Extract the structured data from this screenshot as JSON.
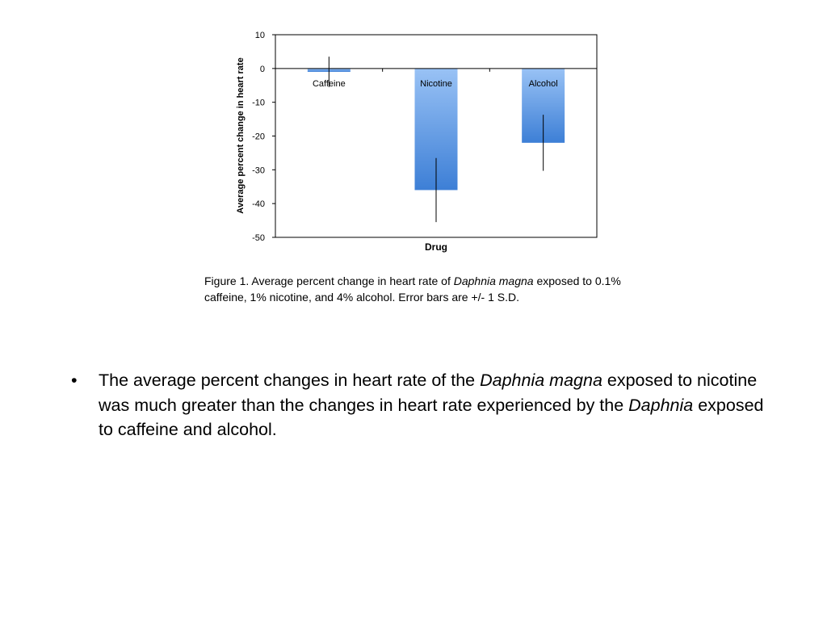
{
  "chart_data": {
    "type": "bar",
    "title": "",
    "xlabel": "Drug",
    "ylabel": "Average percent change in heart rate",
    "ylim": [
      -50,
      10
    ],
    "yticks": [
      10,
      0,
      -10,
      -20,
      -30,
      -40,
      -50
    ],
    "categories": [
      "Caffeine",
      "Nicotine",
      "Alcohol"
    ],
    "values": [
      -1,
      -36,
      -22
    ],
    "error": [
      4.5,
      9.5,
      8.3
    ],
    "bar_gradient": {
      "top": "#99c2f5",
      "bottom": "#3d7fd6"
    },
    "grid": false,
    "legend": "none"
  },
  "caption": {
    "prefix": "Figure 1. Average percent change in heart rate of ",
    "species": "Daphnia magna",
    "suffix": " exposed to 0.1% caffeine, 1% nicotine, and 4% alcohol.  Error bars are +/- 1 S.D."
  },
  "bullets": [
    {
      "mark": "•",
      "t1": "The average percent changes in heart rate of the ",
      "i1": "Daphnia magna",
      "t2": " exposed to nicotine was much greater than the changes in heart rate experienced by the ",
      "i2": "Daphnia",
      "t3": " exposed to caffeine and alcohol."
    }
  ]
}
